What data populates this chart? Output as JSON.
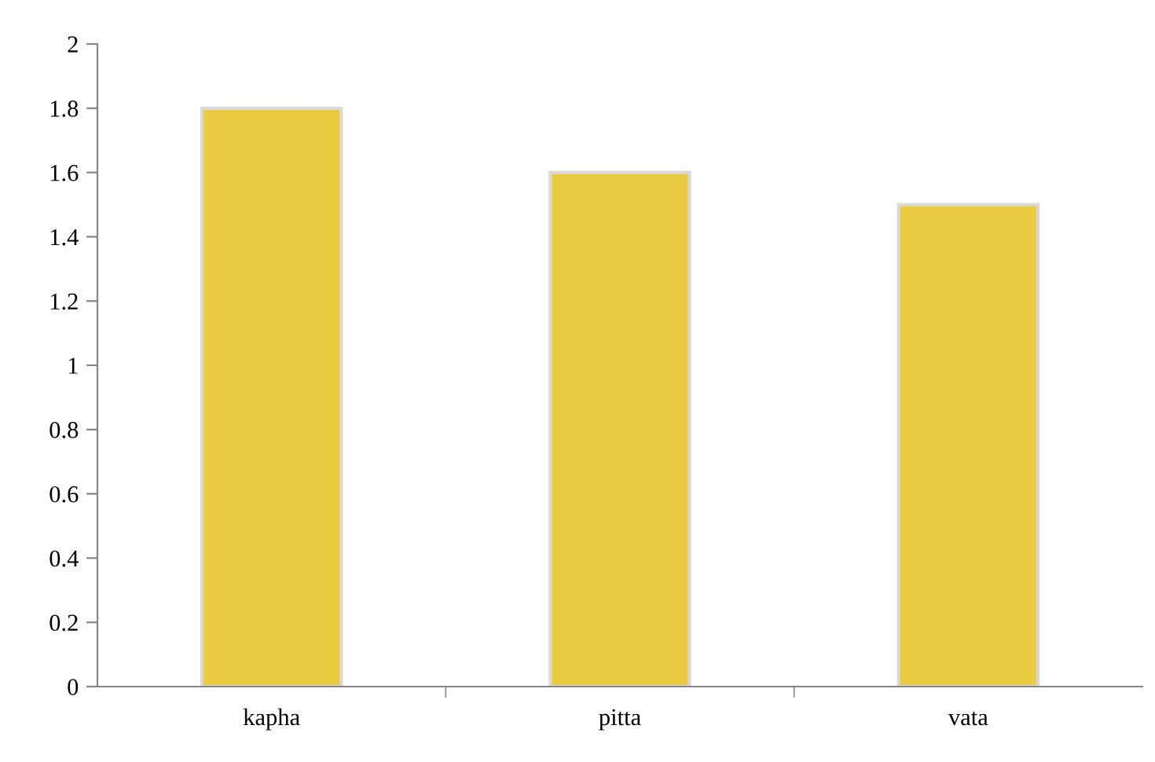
{
  "chart_data": {
    "type": "bar",
    "categories": [
      "kapha",
      "pitta",
      "vata"
    ],
    "values": [
      1.8,
      1.6,
      1.5
    ],
    "color": "#ebcb40",
    "ylim": [
      0,
      2
    ],
    "yticks": [
      0,
      0.2,
      0.4,
      0.6,
      0.8,
      1,
      1.2,
      1.4,
      1.6,
      1.8,
      2
    ],
    "grid": false
  }
}
